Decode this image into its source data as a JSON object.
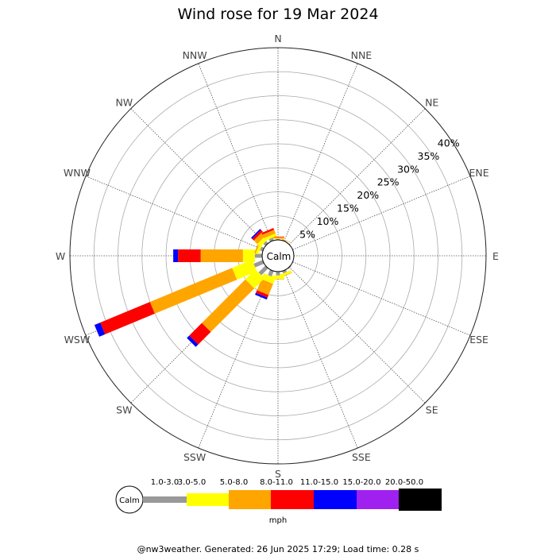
{
  "chart_data": {
    "type": "wind-rose",
    "title": "Wind rose for 19 Mar 2024",
    "directions": [
      "N",
      "NNE",
      "NE",
      "ENE",
      "E",
      "ESE",
      "SE",
      "SSE",
      "S",
      "SSW",
      "SW",
      "WSW",
      "W",
      "WNW",
      "NW",
      "NNW"
    ],
    "ring_labels": [
      "5%",
      "10%",
      "15%",
      "20%",
      "25%",
      "30%",
      "35%",
      "40%"
    ],
    "ring_max_percent": 40,
    "calm_label": "Calm",
    "unit": "mph",
    "speed_bins": [
      {
        "label": "1.0-3.0",
        "color": "#999999"
      },
      {
        "label": "3.0-5.0",
        "color": "#ffff00"
      },
      {
        "label": "5.0-8.0",
        "color": "#ffa500"
      },
      {
        "label": "8.0-11.0",
        "color": "#ff0000"
      },
      {
        "label": "11.0-15.0",
        "color": "#0000ff"
      },
      {
        "label": "15.0-20.0",
        "color": "#a020f0"
      },
      {
        "label": "20.0-50.0",
        "color": "#000000"
      }
    ],
    "series": [
      {
        "direction": "N",
        "cumulative_percent": [
          0.2,
          0.3,
          0.6,
          0.7
        ]
      },
      {
        "direction": "NNE",
        "cumulative_percent": [
          0.2,
          0.2,
          0.3
        ]
      },
      {
        "direction": "SE",
        "cumulative_percent": [
          0.2
        ]
      },
      {
        "direction": "SSE",
        "cumulative_percent": [
          0.5,
          1.0,
          1.1
        ]
      },
      {
        "direction": "S",
        "cumulative_percent": [
          0.8,
          1.5,
          1.6
        ]
      },
      {
        "direction": "SSW",
        "cumulative_percent": [
          1.2,
          2.5,
          5.0,
          5.6,
          6.0
        ]
      },
      {
        "direction": "SW",
        "cumulative_percent": [
          2.0,
          5.0,
          17.8,
          21.5,
          22.2
        ]
      },
      {
        "direction": "WSW",
        "cumulative_percent": [
          2.0,
          6.5,
          25.0,
          36.2,
          37.5
        ]
      },
      {
        "direction": "W",
        "cumulative_percent": [
          1.5,
          4.0,
          12.8,
          17.5,
          18.5
        ]
      },
      {
        "direction": "WNW",
        "cumulative_percent": [
          0.6,
          1.2,
          1.5
        ]
      },
      {
        "direction": "NW",
        "cumulative_percent": [
          0.6,
          1.5,
          2.5,
          3.0,
          3.3
        ]
      },
      {
        "direction": "NNW",
        "cumulative_percent": [
          0.6,
          1.2,
          2.0,
          2.4
        ]
      }
    ]
  },
  "footer": "@nw3weather. Generated: 26 Jun 2025 17:29; Load time: 0.28 s"
}
